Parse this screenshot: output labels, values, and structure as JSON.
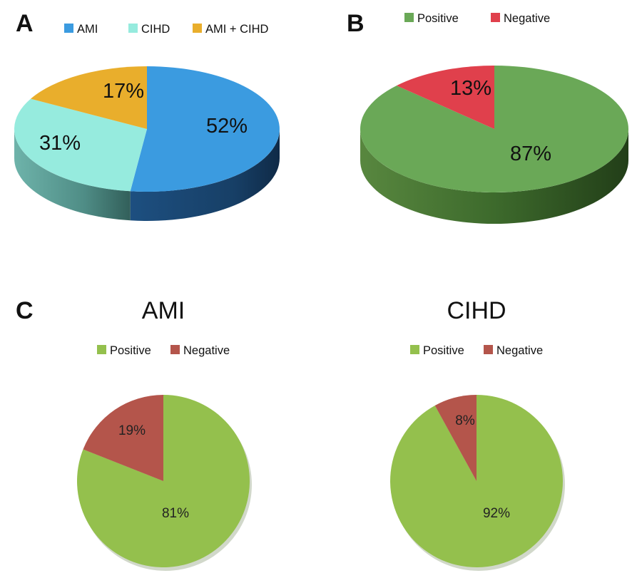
{
  "chart_data": [
    {
      "panel": "A",
      "type": "pie",
      "style": "3d",
      "title": "",
      "categories": [
        "AMI",
        "CIHD",
        "AMI + CIHD"
      ],
      "values": [
        52,
        31,
        17
      ],
      "labels": [
        "52%",
        "31%",
        "17%"
      ],
      "colors": [
        "#3b9be0",
        "#96ebde",
        "#e9ae2c"
      ],
      "legend": "top"
    },
    {
      "panel": "B",
      "type": "pie",
      "style": "3d",
      "title": "",
      "categories": [
        "Positive",
        "Negative"
      ],
      "values": [
        87,
        13
      ],
      "labels": [
        "87%",
        "13%"
      ],
      "colors": [
        "#6aa857",
        "#e0404c"
      ],
      "legend": "top"
    },
    {
      "panel": "C",
      "type": "pie",
      "style": "2d",
      "title": "AMI",
      "categories": [
        "Positive",
        "Negative"
      ],
      "values": [
        81,
        19
      ],
      "labels": [
        "81%",
        "19%"
      ],
      "colors": [
        "#94c04d",
        "#b4554b"
      ],
      "legend": "top"
    },
    {
      "panel": "",
      "type": "pie",
      "style": "2d",
      "title": "CIHD",
      "categories": [
        "Positive",
        "Negative"
      ],
      "values": [
        92,
        8
      ],
      "labels": [
        "92%",
        "8%"
      ],
      "colors": [
        "#94c04d",
        "#b4554b"
      ],
      "legend": "top"
    }
  ]
}
